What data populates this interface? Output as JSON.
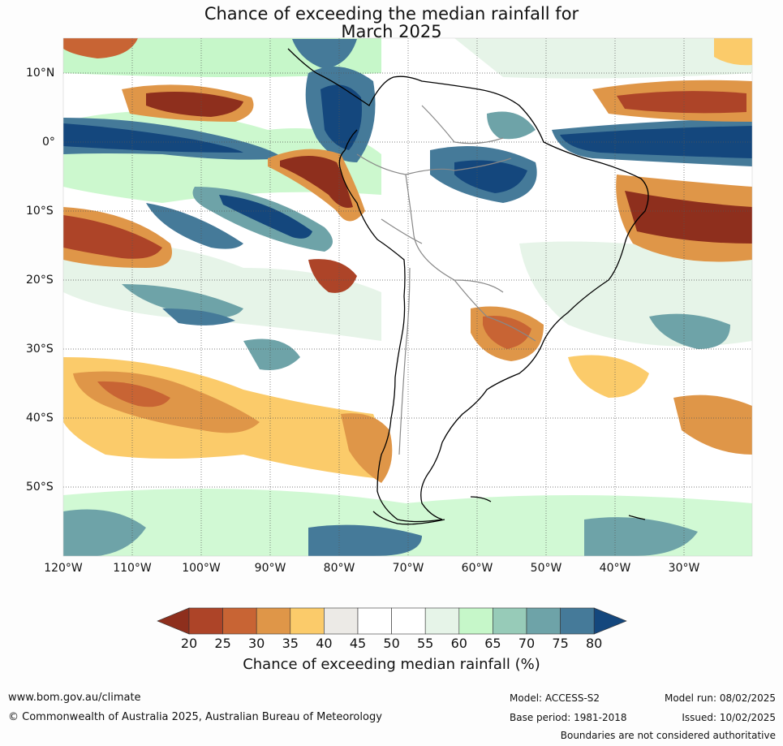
{
  "title": {
    "line1": "Chance of exceeding the median rainfall for",
    "line2": "March 2025"
  },
  "map": {
    "lat_labels": [
      "10°N",
      "0°",
      "10°S",
      "20°S",
      "30°S",
      "40°S",
      "50°S"
    ],
    "lon_labels": [
      "120°W",
      "110°W",
      "100°W",
      "90°W",
      "80°W",
      "70°W",
      "60°W",
      "50°W",
      "40°W",
      "30°W"
    ]
  },
  "colorbar": {
    "ticks": [
      "20",
      "25",
      "30",
      "35",
      "40",
      "45",
      "50",
      "55",
      "60",
      "65",
      "70",
      "75",
      "80"
    ],
    "colors": [
      "#8e2f1d",
      "#ad4428",
      "#c86434",
      "#df9648",
      "#fbcb6a",
      "#eceae6",
      "#ffffff",
      "#ffffff",
      "#e6f4e8",
      "#c6f7c9",
      "#97cbb8",
      "#6ea3a8",
      "#457a99",
      "#14477d"
    ],
    "title": "Chance of exceeding median rainfall (%)"
  },
  "footer": {
    "website": "www.bom.gov.au/climate",
    "copyright": "© Commonwealth of Australia 2025, Australian Bureau of Meteorology",
    "model": "Model: ACCESS-S2",
    "base_period": "Base period: 1981-2018",
    "model_run": "Model run: 08/02/2025",
    "issued": "Issued: 10/02/2025",
    "disclaimer": "Boundaries are not considered authoritative"
  }
}
